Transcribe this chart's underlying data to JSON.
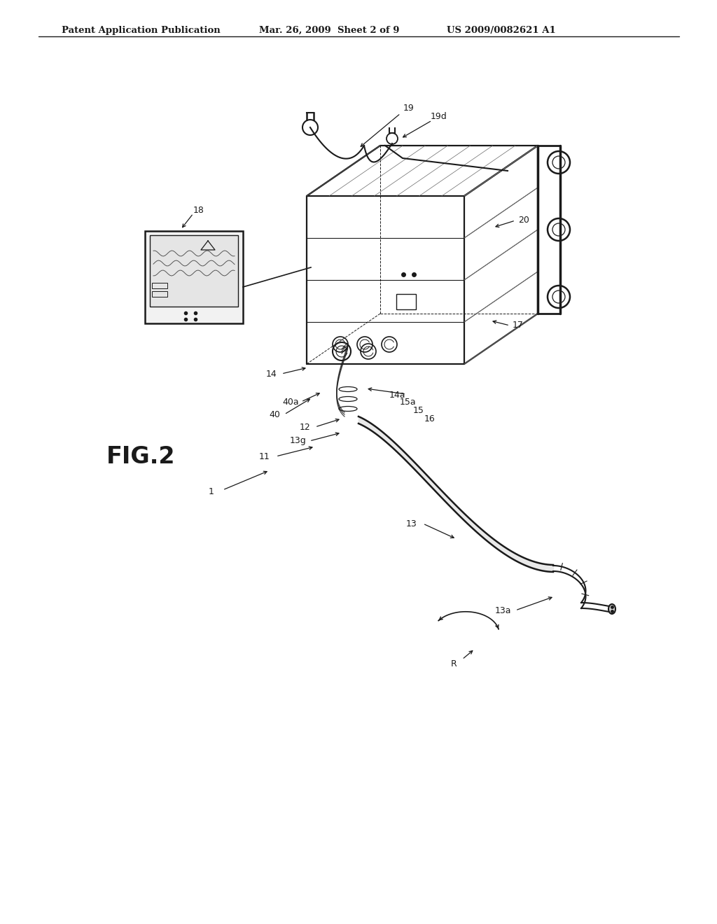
{
  "bg_color": "#ffffff",
  "line_color": "#1a1a1a",
  "header_left": "Patent Application Publication",
  "header_mid": "Mar. 26, 2009  Sheet 2 of 9",
  "header_right": "US 2009/0082621 A1",
  "fig_label": "FIG.2",
  "gray_light": "#d0d0d0",
  "gray_mid": "#888888"
}
